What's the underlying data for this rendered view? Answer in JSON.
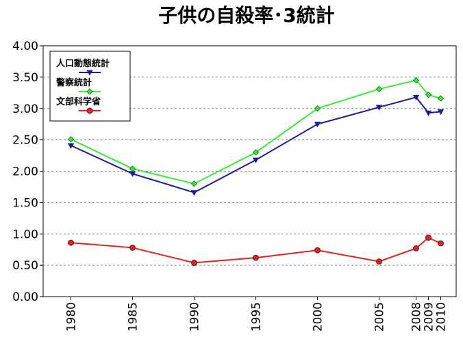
{
  "chart_data": {
    "type": "line",
    "title": "子供の自殺率･3統計",
    "x": [
      1980,
      1985,
      1990,
      1995,
      2000,
      2005,
      2008,
      2009,
      2010
    ],
    "x_tick_labels": [
      "1980",
      "1985",
      "1990",
      "1995",
      "2000",
      "2005",
      "2008",
      "2009",
      "2010"
    ],
    "ylim": [
      0,
      4
    ],
    "y_ticks": [
      0,
      0.5,
      1.0,
      1.5,
      2.0,
      2.5,
      3.0,
      3.5,
      4.0
    ],
    "y_tick_labels": [
      "0.00",
      "0.50",
      "1.00",
      "1.50",
      "2.00",
      "2.50",
      "3.00",
      "3.50",
      "4.00"
    ],
    "grid": "horizontal dashed",
    "legend_position": "top-left",
    "series": [
      {
        "name": "人口動態統計",
        "color": "#1a1aa0",
        "marker": "triangle-down",
        "values": [
          2.41,
          1.96,
          1.66,
          2.18,
          2.75,
          3.02,
          3.18,
          2.93,
          2.95
        ]
      },
      {
        "name": "警察統計",
        "color": "#33ee33",
        "marker": "diamond",
        "values": [
          2.51,
          2.04,
          1.8,
          2.3,
          3.0,
          3.31,
          3.45,
          3.22,
          3.16
        ]
      },
      {
        "name": "文部科学省",
        "color": "#dd2222",
        "marker": "circle",
        "values": [
          0.86,
          0.78,
          0.54,
          0.62,
          0.74,
          0.56,
          0.77,
          0.94,
          0.85
        ]
      }
    ]
  }
}
